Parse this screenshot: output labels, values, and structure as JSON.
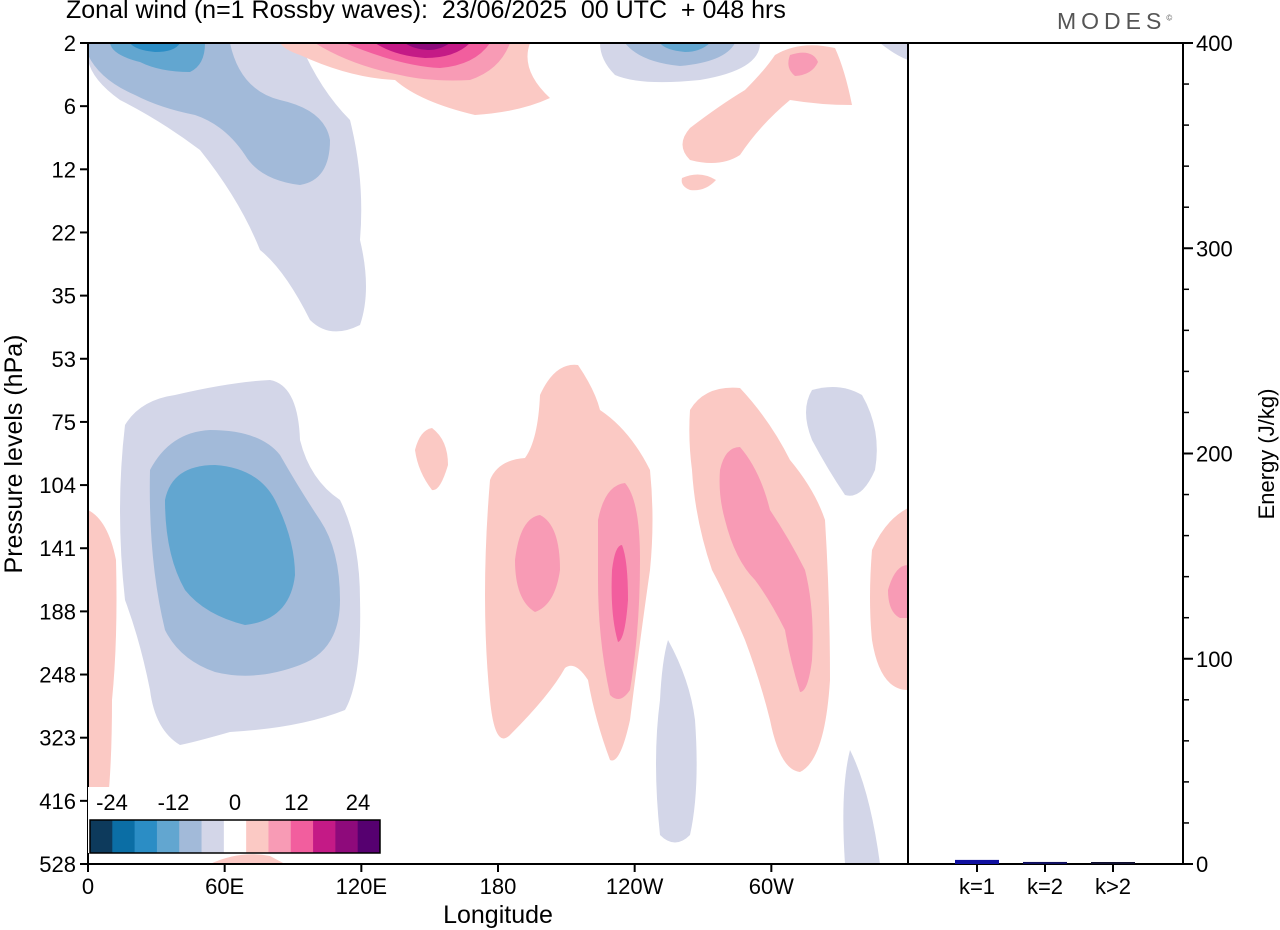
{
  "title": "Zonal wind (n=1 Rossby waves):  23/06/2025  00 UTC  + 048 hrs",
  "logo": "MODES",
  "logo_mark": "©",
  "chart_data": [
    {
      "type": "contour",
      "xlabel": "Longitude",
      "ylabel": "Pressure levels (hPa)",
      "x_ticks": [
        "0",
        "60E",
        "120E",
        "180",
        "120W",
        "60W"
      ],
      "y_ticks": [
        "2",
        "6",
        "12",
        "22",
        "35",
        "53",
        "75",
        "104",
        "141",
        "188",
        "248",
        "323",
        "416",
        "528"
      ],
      "colorbar": {
        "labels": [
          "-24",
          "-12",
          "0",
          "12",
          "24"
        ],
        "colors": [
          "#0d3a5c",
          "#0b6ea5",
          "#2b8dc5",
          "#62a6d0",
          "#a2bad9",
          "#d3d6e8",
          "#ffffff",
          "#fbc9c4",
          "#f89bb5",
          "#f25e9e",
          "#c41a86",
          "#8e0a7b",
          "#560070"
        ]
      }
    },
    {
      "type": "bar",
      "ylabel": "Energy (J/kg)",
      "ylim": [
        0,
        400
      ],
      "y_ticks": [
        "0",
        "100",
        "200",
        "300",
        "400"
      ],
      "categories": [
        "k=1",
        "k=2",
        "k>2"
      ],
      "values": [
        2,
        1,
        0.5
      ],
      "colors": [
        "#1010a0",
        "#101060",
        "#101030"
      ]
    }
  ]
}
